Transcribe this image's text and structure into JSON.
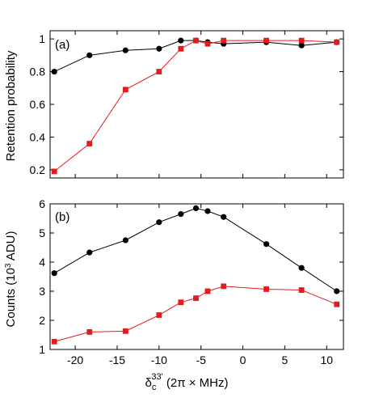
{
  "chart_data": [
    {
      "type": "line",
      "panel_label": "(a)",
      "ylabel": "Retention probability",
      "xlabel": "",
      "xlim": [
        -23,
        12
      ],
      "ylim": [
        0.15,
        1.05
      ],
      "xticks": [
        -20,
        -15,
        -10,
        -5,
        0,
        5,
        10
      ],
      "yticks": [
        0.2,
        0.4,
        0.6,
        0.8,
        1
      ],
      "ytick_labels": [
        "0.2",
        "0.4",
        "0.6",
        "0.8",
        "1"
      ],
      "show_xtick_labels": false,
      "grid": false,
      "series": [
        {
          "color": "#000000",
          "marker": "circle",
          "x": [
            -22.5,
            -18.3,
            -14.0,
            -10.0,
            -7.4,
            -5.6,
            -4.2,
            -2.3,
            2.8,
            7.0,
            11.2
          ],
          "y": [
            0.8,
            0.9,
            0.93,
            0.94,
            0.99,
            0.99,
            0.98,
            0.97,
            0.98,
            0.96,
            0.98
          ]
        },
        {
          "color": "#e41a1c",
          "marker": "square",
          "x": [
            -22.5,
            -18.3,
            -14.0,
            -10.0,
            -7.4,
            -5.6,
            -4.2,
            -2.3,
            2.8,
            7.0,
            11.2
          ],
          "y": [
            0.19,
            0.36,
            0.69,
            0.8,
            0.94,
            0.99,
            0.97,
            0.99,
            0.99,
            0.99,
            0.98
          ]
        }
      ]
    },
    {
      "type": "line",
      "panel_label": "(b)",
      "ylabel_main": "Counts (10",
      "ylabel_sup": "3",
      "ylabel_tail": " ADU)",
      "xlabel_delta": "δ",
      "xlabel_sub": "c",
      "xlabel_sup": "33'",
      "xlabel_tail": " (2π × MHz)",
      "xlim": [
        -23,
        12
      ],
      "ylim": [
        1,
        6
      ],
      "xticks": [
        -20,
        -15,
        -10,
        -5,
        0,
        5,
        10
      ],
      "xtick_labels": [
        "-20",
        "-15",
        "-10",
        "-5",
        "0",
        "5",
        "10"
      ],
      "yticks": [
        1,
        2,
        3,
        4,
        5,
        6
      ],
      "ytick_labels": [
        "1",
        "2",
        "3",
        "4",
        "5",
        "6"
      ],
      "grid": false,
      "series": [
        {
          "color": "#000000",
          "marker": "circle",
          "x": [
            -22.5,
            -18.3,
            -14.0,
            -10.0,
            -7.4,
            -5.6,
            -4.2,
            -2.3,
            2.8,
            7.0,
            11.2
          ],
          "y": [
            3.62,
            4.33,
            4.75,
            5.37,
            5.65,
            5.85,
            5.75,
            5.55,
            4.62,
            3.8,
            3.0
          ]
        },
        {
          "color": "#e41a1c",
          "marker": "square",
          "x": [
            -22.5,
            -18.3,
            -14.0,
            -10.0,
            -7.4,
            -5.6,
            -4.2,
            -2.3,
            2.8,
            7.0,
            11.2
          ],
          "y": [
            1.27,
            1.6,
            1.63,
            2.18,
            2.62,
            2.76,
            3.0,
            3.17,
            3.07,
            3.04,
            2.55
          ]
        }
      ]
    }
  ]
}
